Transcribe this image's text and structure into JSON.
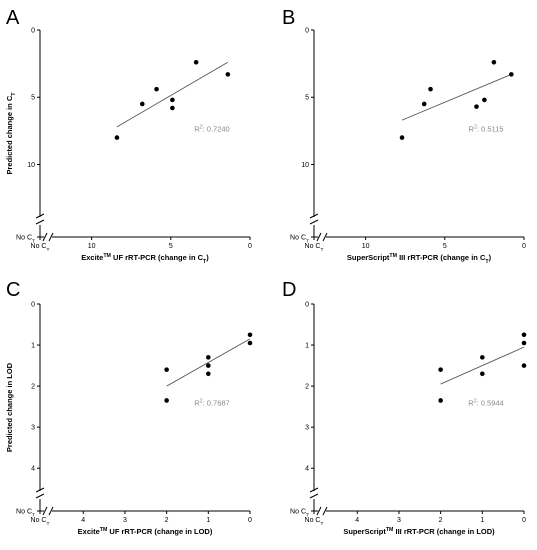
{
  "chart_data": [
    {
      "type": "scatter",
      "panel_label": "A",
      "ylabel": "Predicted change in C_T",
      "xlabel": "Excite^TM UF rRT-PCR (change in C_T)",
      "x_reversed": true,
      "y_reversed": true,
      "xlim": [
        0,
        12.5
      ],
      "ylim": [
        0,
        14.5
      ],
      "xticks": [
        10,
        5,
        0
      ],
      "yticks": [
        0,
        5,
        10
      ],
      "no_ct_label": "No C",
      "no_ct_sub": "T",
      "points": [
        {
          "x": 8.4,
          "y": 8.0
        },
        {
          "x": 6.8,
          "y": 5.5
        },
        {
          "x": 5.9,
          "y": 4.4
        },
        {
          "x": 4.9,
          "y": 5.2
        },
        {
          "x": 4.9,
          "y": 5.8
        },
        {
          "x": 3.4,
          "y": 2.4
        },
        {
          "x": 1.4,
          "y": 3.3
        }
      ],
      "fit": {
        "x1": 8.4,
        "y1": 7.2,
        "x2": 1.4,
        "y2": 2.4
      },
      "r2_prefix": "R",
      "r2_sup": "2",
      "r2_value": ": 0.7240"
    },
    {
      "type": "scatter",
      "panel_label": "B",
      "ylabel": "",
      "xlabel": "SuperScript^TM III rRT-PCR (change in C_T)",
      "x_reversed": true,
      "y_reversed": true,
      "xlim": [
        0,
        12.5
      ],
      "ylim": [
        0,
        14.5
      ],
      "xticks": [
        10,
        5,
        0
      ],
      "yticks": [
        0,
        5,
        10
      ],
      "no_ct_label": "No C",
      "no_ct_sub": "T",
      "points": [
        {
          "x": 7.7,
          "y": 8.0
        },
        {
          "x": 6.3,
          "y": 5.5
        },
        {
          "x": 5.9,
          "y": 4.4
        },
        {
          "x": 3.0,
          "y": 5.7
        },
        {
          "x": 2.5,
          "y": 5.2
        },
        {
          "x": 1.9,
          "y": 2.4
        },
        {
          "x": 0.8,
          "y": 3.3
        }
      ],
      "fit": {
        "x1": 7.7,
        "y1": 6.7,
        "x2": 0.8,
        "y2": 3.3
      },
      "r2_prefix": "R",
      "r2_sup": "2",
      "r2_value": ": 0.5115"
    },
    {
      "type": "scatter",
      "panel_label": "C",
      "ylabel": "Predicted change in LOD",
      "xlabel": "Excite^TM UF rRT-PCR (change in LOD)",
      "x_reversed": true,
      "y_reversed": true,
      "xlim": [
        0,
        4.75
      ],
      "ylim": [
        0,
        4.75
      ],
      "xticks": [
        4,
        3,
        2,
        1,
        0
      ],
      "yticks": [
        0,
        1,
        2,
        3,
        4
      ],
      "no_ct_label": "No C",
      "no_ct_sub": "T",
      "points": [
        {
          "x": 2.0,
          "y": 1.6
        },
        {
          "x": 2.0,
          "y": 2.35
        },
        {
          "x": 1.0,
          "y": 1.3
        },
        {
          "x": 1.0,
          "y": 1.5
        },
        {
          "x": 1.0,
          "y": 1.7
        },
        {
          "x": 0.0,
          "y": 0.75
        },
        {
          "x": 0.0,
          "y": 0.95
        }
      ],
      "fit": {
        "x1": 2.0,
        "y1": 2.0,
        "x2": 0.0,
        "y2": 0.85
      },
      "r2_prefix": "R",
      "r2_sup": "2",
      "r2_value": ": 0.7687"
    },
    {
      "type": "scatter",
      "panel_label": "D",
      "ylabel": "",
      "xlabel": "SuperScript^TM III rRT-PCR (change in LOD)",
      "x_reversed": true,
      "y_reversed": true,
      "xlim": [
        0,
        4.75
      ],
      "ylim": [
        0,
        4.75
      ],
      "xticks": [
        4,
        3,
        2,
        1,
        0
      ],
      "yticks": [
        0,
        1,
        2,
        3,
        4
      ],
      "no_ct_label": "No C",
      "no_ct_sub": "T",
      "points": [
        {
          "x": 2.0,
          "y": 1.6
        },
        {
          "x": 2.0,
          "y": 2.35
        },
        {
          "x": 1.0,
          "y": 1.3
        },
        {
          "x": 1.0,
          "y": 1.7
        },
        {
          "x": 0.0,
          "y": 0.75
        },
        {
          "x": 0.0,
          "y": 0.95
        },
        {
          "x": 0.0,
          "y": 1.5
        }
      ],
      "fit": {
        "x1": 2.0,
        "y1": 1.95,
        "x2": 0.0,
        "y2": 1.05
      },
      "r2_prefix": "R",
      "r2_sup": "2",
      "r2_value": ": 0.5944"
    }
  ]
}
